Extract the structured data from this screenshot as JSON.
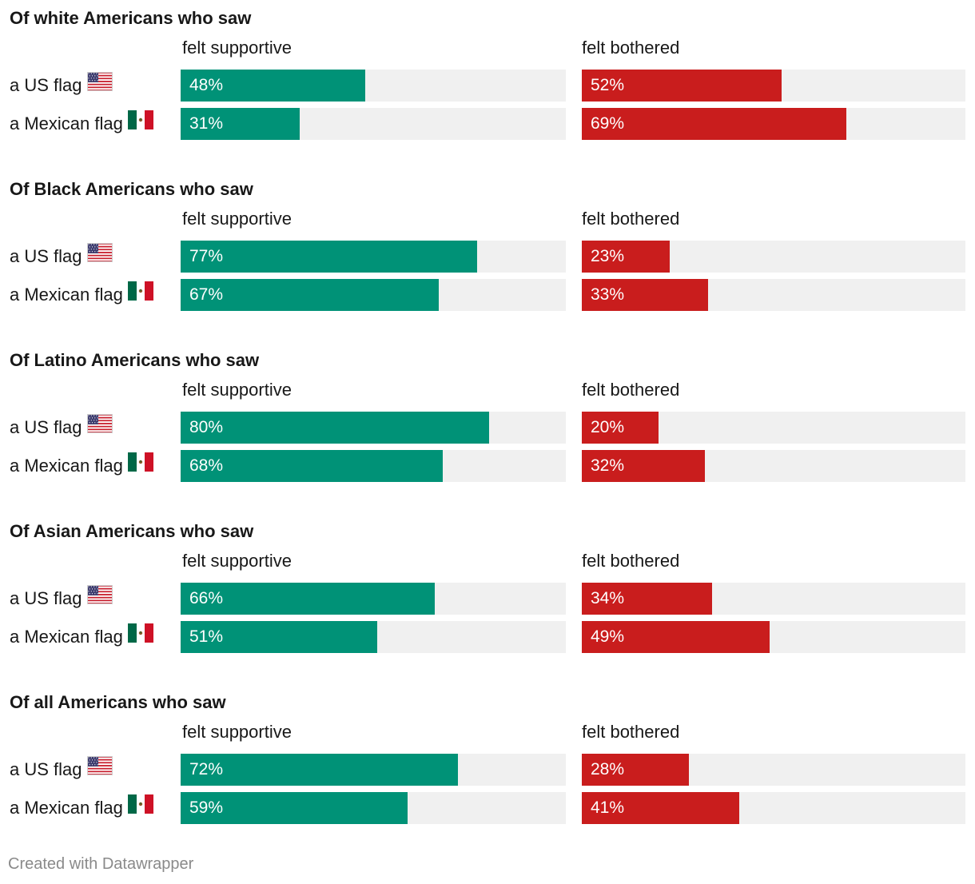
{
  "chart_data": {
    "type": "bar",
    "orientation": "horizontal",
    "stacked_panels": [
      "felt supportive",
      "felt bothered"
    ],
    "xlim": [
      0,
      100
    ],
    "value_format": "percent",
    "colors": {
      "supportive": "#009277",
      "bothered": "#c91d1d",
      "track": "#f0f0f0"
    },
    "groups": [
      {
        "title": "Of white Americans who saw",
        "supportive_label": "felt supportive",
        "bothered_label": "felt bothered",
        "rows": [
          {
            "label": "a US flag",
            "flag": "us-flag",
            "supportive": 48,
            "bothered": 52
          },
          {
            "label": "a Mexican flag",
            "flag": "mexican-flag",
            "supportive": 31,
            "bothered": 69
          }
        ]
      },
      {
        "title": "Of Black Americans who saw",
        "supportive_label": "felt supportive",
        "bothered_label": "felt bothered",
        "rows": [
          {
            "label": "a US flag",
            "flag": "us-flag",
            "supportive": 77,
            "bothered": 23
          },
          {
            "label": "a Mexican flag",
            "flag": "mexican-flag",
            "supportive": 67,
            "bothered": 33
          }
        ]
      },
      {
        "title": "Of Latino Americans who saw",
        "supportive_label": "felt supportive",
        "bothered_label": "felt bothered",
        "rows": [
          {
            "label": "a US flag",
            "flag": "us-flag",
            "supportive": 80,
            "bothered": 20
          },
          {
            "label": "a Mexican flag",
            "flag": "mexican-flag",
            "supportive": 68,
            "bothered": 32
          }
        ]
      },
      {
        "title": "Of Asian Americans who saw",
        "supportive_label": "felt supportive",
        "bothered_label": "felt bothered",
        "rows": [
          {
            "label": "a US flag",
            "flag": "us-flag",
            "supportive": 66,
            "bothered": 34
          },
          {
            "label": "a Mexican flag",
            "flag": "mexican-flag",
            "supportive": 51,
            "bothered": 49
          }
        ]
      },
      {
        "title": "Of all Americans who saw",
        "supportive_label": "felt supportive",
        "bothered_label": "felt bothered",
        "rows": [
          {
            "label": "a US flag",
            "flag": "us-flag",
            "supportive": 72,
            "bothered": 28
          },
          {
            "label": "a Mexican flag",
            "flag": "mexican-flag",
            "supportive": 59,
            "bothered": 41
          }
        ]
      }
    ]
  },
  "footer": {
    "credit": "Created with Datawrapper"
  }
}
